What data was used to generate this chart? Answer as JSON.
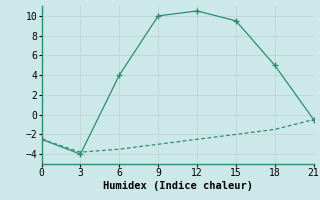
{
  "line1_x": [
    0,
    3,
    6,
    9,
    12,
    15,
    18,
    21
  ],
  "line1_y": [
    -2.5,
    -4,
    4,
    10,
    10.5,
    9.5,
    5,
    -0.5
  ],
  "line2_x": [
    0,
    3,
    6,
    9,
    12,
    15,
    18,
    21
  ],
  "line2_y": [
    -2.5,
    -3.8,
    -3.5,
    -3.0,
    -2.5,
    -2.0,
    -1.5,
    -0.5
  ],
  "line_color": "#2e8b74",
  "background_color": "#cde8e8",
  "grid_color": "#b0d4d4",
  "spine_color": "#2e8b74",
  "xlabel": "Humidex (Indice chaleur)",
  "xlim": [
    0,
    21
  ],
  "ylim": [
    -5,
    11
  ],
  "xticks": [
    0,
    3,
    6,
    9,
    12,
    15,
    18,
    21
  ],
  "yticks": [
    -4,
    -2,
    0,
    2,
    4,
    6,
    8,
    10
  ],
  "axis_fontsize": 7.5,
  "tick_fontsize": 7
}
